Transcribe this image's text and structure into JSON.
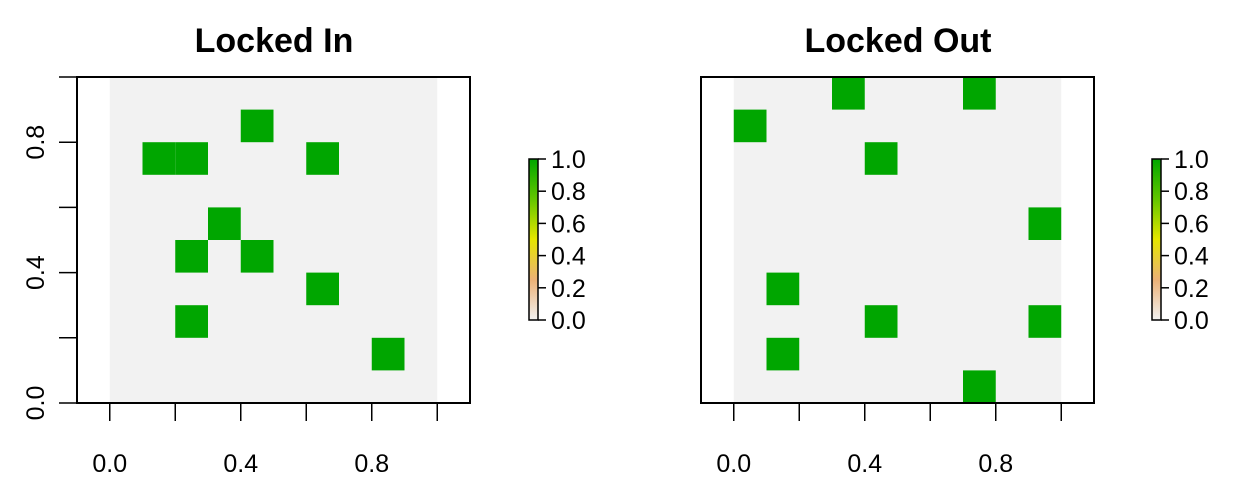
{
  "chart_data": [
    {
      "type": "heatmap",
      "title": "Locked In",
      "xlabel": "",
      "ylabel": "",
      "xlim": [
        -0.1,
        1.1
      ],
      "ylim": [
        0,
        1
      ],
      "x_ticks": [
        0.0,
        0.2,
        0.4,
        0.6,
        0.8,
        1.0
      ],
      "x_tick_labels": [
        "0.0",
        "",
        "0.4",
        "",
        "0.8",
        ""
      ],
      "y_ticks": [
        0.0,
        0.2,
        0.4,
        0.6,
        0.8,
        1.0
      ],
      "y_tick_labels": [
        "0.0",
        "",
        "0.4",
        "",
        "0.8",
        ""
      ],
      "grid_extent": {
        "x": [
          0,
          1
        ],
        "y": [
          0,
          1
        ]
      },
      "cell_size": 0.1,
      "background_value": 0,
      "background_color": "#f2f2f2",
      "value_color": "#00a600",
      "cells": [
        {
          "x": 0.45,
          "y": 0.85,
          "value": 1
        },
        {
          "x": 0.15,
          "y": 0.75,
          "value": 1
        },
        {
          "x": 0.25,
          "y": 0.75,
          "value": 1
        },
        {
          "x": 0.65,
          "y": 0.75,
          "value": 1
        },
        {
          "x": 0.35,
          "y": 0.55,
          "value": 1
        },
        {
          "x": 0.25,
          "y": 0.45,
          "value": 1
        },
        {
          "x": 0.45,
          "y": 0.45,
          "value": 1
        },
        {
          "x": 0.65,
          "y": 0.35,
          "value": 1
        },
        {
          "x": 0.25,
          "y": 0.25,
          "value": 1
        },
        {
          "x": 0.85,
          "y": 0.15,
          "value": 1
        }
      ],
      "legend": {
        "placement": "right",
        "range": [
          0,
          1
        ],
        "labels": [
          "0.0",
          "0.2",
          "0.4",
          "0.6",
          "0.8",
          "1.0"
        ],
        "colors": [
          "#f2f2f2",
          "#ecb176",
          "#e6e600",
          "#63c600",
          "#00a600"
        ]
      }
    },
    {
      "type": "heatmap",
      "title": "Locked Out",
      "xlabel": "",
      "ylabel": "",
      "xlim": [
        -0.1,
        1.1
      ],
      "ylim": [
        0,
        1
      ],
      "x_ticks": [
        0.0,
        0.2,
        0.4,
        0.6,
        0.8,
        1.0
      ],
      "x_tick_labels": [
        "0.0",
        "",
        "0.4",
        "",
        "0.8",
        ""
      ],
      "grid_extent": {
        "x": [
          0,
          1
        ],
        "y": [
          0,
          1
        ]
      },
      "cell_size": 0.1,
      "background_value": 0,
      "background_color": "#f2f2f2",
      "value_color": "#00a600",
      "cells": [
        {
          "x": 0.35,
          "y": 0.95,
          "value": 1
        },
        {
          "x": 0.75,
          "y": 0.95,
          "value": 1
        },
        {
          "x": 0.05,
          "y": 0.85,
          "value": 1
        },
        {
          "x": 0.45,
          "y": 0.75,
          "value": 1
        },
        {
          "x": 0.95,
          "y": 0.55,
          "value": 1
        },
        {
          "x": 0.15,
          "y": 0.35,
          "value": 1
        },
        {
          "x": 0.45,
          "y": 0.25,
          "value": 1
        },
        {
          "x": 0.95,
          "y": 0.25,
          "value": 1
        },
        {
          "x": 0.15,
          "y": 0.15,
          "value": 1
        },
        {
          "x": 0.75,
          "y": 0.05,
          "value": 1
        }
      ],
      "legend": {
        "placement": "right",
        "range": [
          0,
          1
        ],
        "labels": [
          "0.0",
          "0.2",
          "0.4",
          "0.6",
          "0.8",
          "1.0"
        ],
        "colors": [
          "#f2f2f2",
          "#ecb176",
          "#e6e600",
          "#63c600",
          "#00a600"
        ]
      }
    }
  ]
}
